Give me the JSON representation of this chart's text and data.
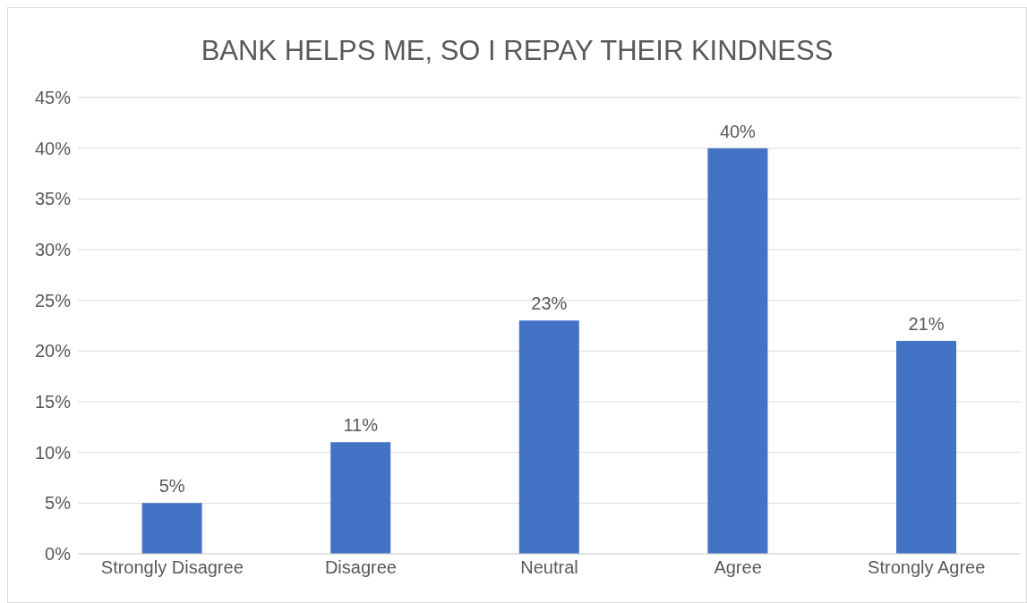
{
  "chart_data": {
    "type": "bar",
    "title": "BANK HELPS ME, SO I REPAY THEIR KINDNESS",
    "categories": [
      "Strongly Disagree",
      "Disagree",
      "Neutral",
      "Agree",
      "Strongly Agree"
    ],
    "values": [
      5,
      11,
      23,
      40,
      21
    ],
    "value_labels": [
      "5%",
      "11%",
      "23%",
      "40%",
      "21%"
    ],
    "color": "#4472c4",
    "ylim": [
      0,
      45
    ],
    "yticks": [
      {
        "value": 0,
        "label": "0%"
      },
      {
        "value": 5,
        "label": "5%"
      },
      {
        "value": 10,
        "label": "10%"
      },
      {
        "value": 15,
        "label": "15%"
      },
      {
        "value": 20,
        "label": "20%"
      },
      {
        "value": 25,
        "label": "25%"
      },
      {
        "value": 30,
        "label": "30%"
      },
      {
        "value": 35,
        "label": "35%"
      },
      {
        "value": 40,
        "label": "40%"
      },
      {
        "value": 45,
        "label": "45%"
      }
    ],
    "grid": "y"
  }
}
